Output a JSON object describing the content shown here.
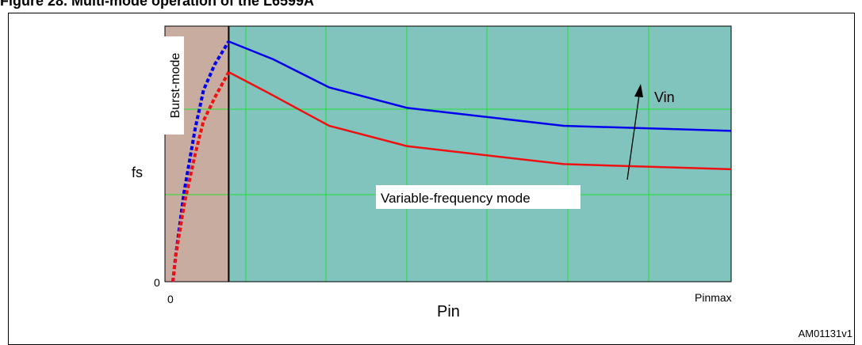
{
  "figure": {
    "caption": "Figure 28. Multi-mode operation of the L6599A",
    "code": "AM01131v1"
  },
  "colors": {
    "plot_background": "#80c4bd",
    "burst_region": "#c9aca0",
    "grid": "#22e030",
    "series_high_vin": "#0000ee",
    "series_low_vin": "#ee1111"
  },
  "chart_data": {
    "type": "line",
    "xlabel": "Pin",
    "ylabel": "fs",
    "x_tick_labels": {
      "origin": "0",
      "end": "Pinmax"
    },
    "y_tick_labels": {
      "origin": "0"
    },
    "xlim": [
      0,
      1
    ],
    "ylim": [
      0,
      1
    ],
    "grid": true,
    "regions": [
      {
        "label": "Burst-mode",
        "x_range": [
          0,
          0.1
        ]
      },
      {
        "label": "Variable-frequency mode",
        "x_range": [
          0.1,
          1
        ]
      }
    ],
    "annotation": {
      "text": "Vin",
      "direction": "increasing"
    },
    "series": [
      {
        "color": "#0000ee",
        "burst_x": [
          0.0,
          0.005,
          0.02,
          0.04,
          0.055,
          0.075,
          0.1
        ],
        "burst_y": [
          0.0,
          0.1,
          0.35,
          0.6,
          0.75,
          0.85,
          0.94
        ],
        "x": [
          0.1,
          0.18,
          0.28,
          0.42,
          0.7,
          1.0
        ],
        "y": [
          0.94,
          0.87,
          0.76,
          0.68,
          0.61,
          0.59
        ]
      },
      {
        "color": "#ee1111",
        "burst_x": [
          0.0,
          0.005,
          0.02,
          0.04,
          0.055,
          0.075,
          0.1
        ],
        "burst_y": [
          0.0,
          0.1,
          0.3,
          0.5,
          0.63,
          0.72,
          0.82
        ],
        "x": [
          0.1,
          0.17,
          0.28,
          0.42,
          0.7,
          1.0
        ],
        "y": [
          0.82,
          0.74,
          0.61,
          0.53,
          0.46,
          0.44
        ]
      }
    ]
  }
}
